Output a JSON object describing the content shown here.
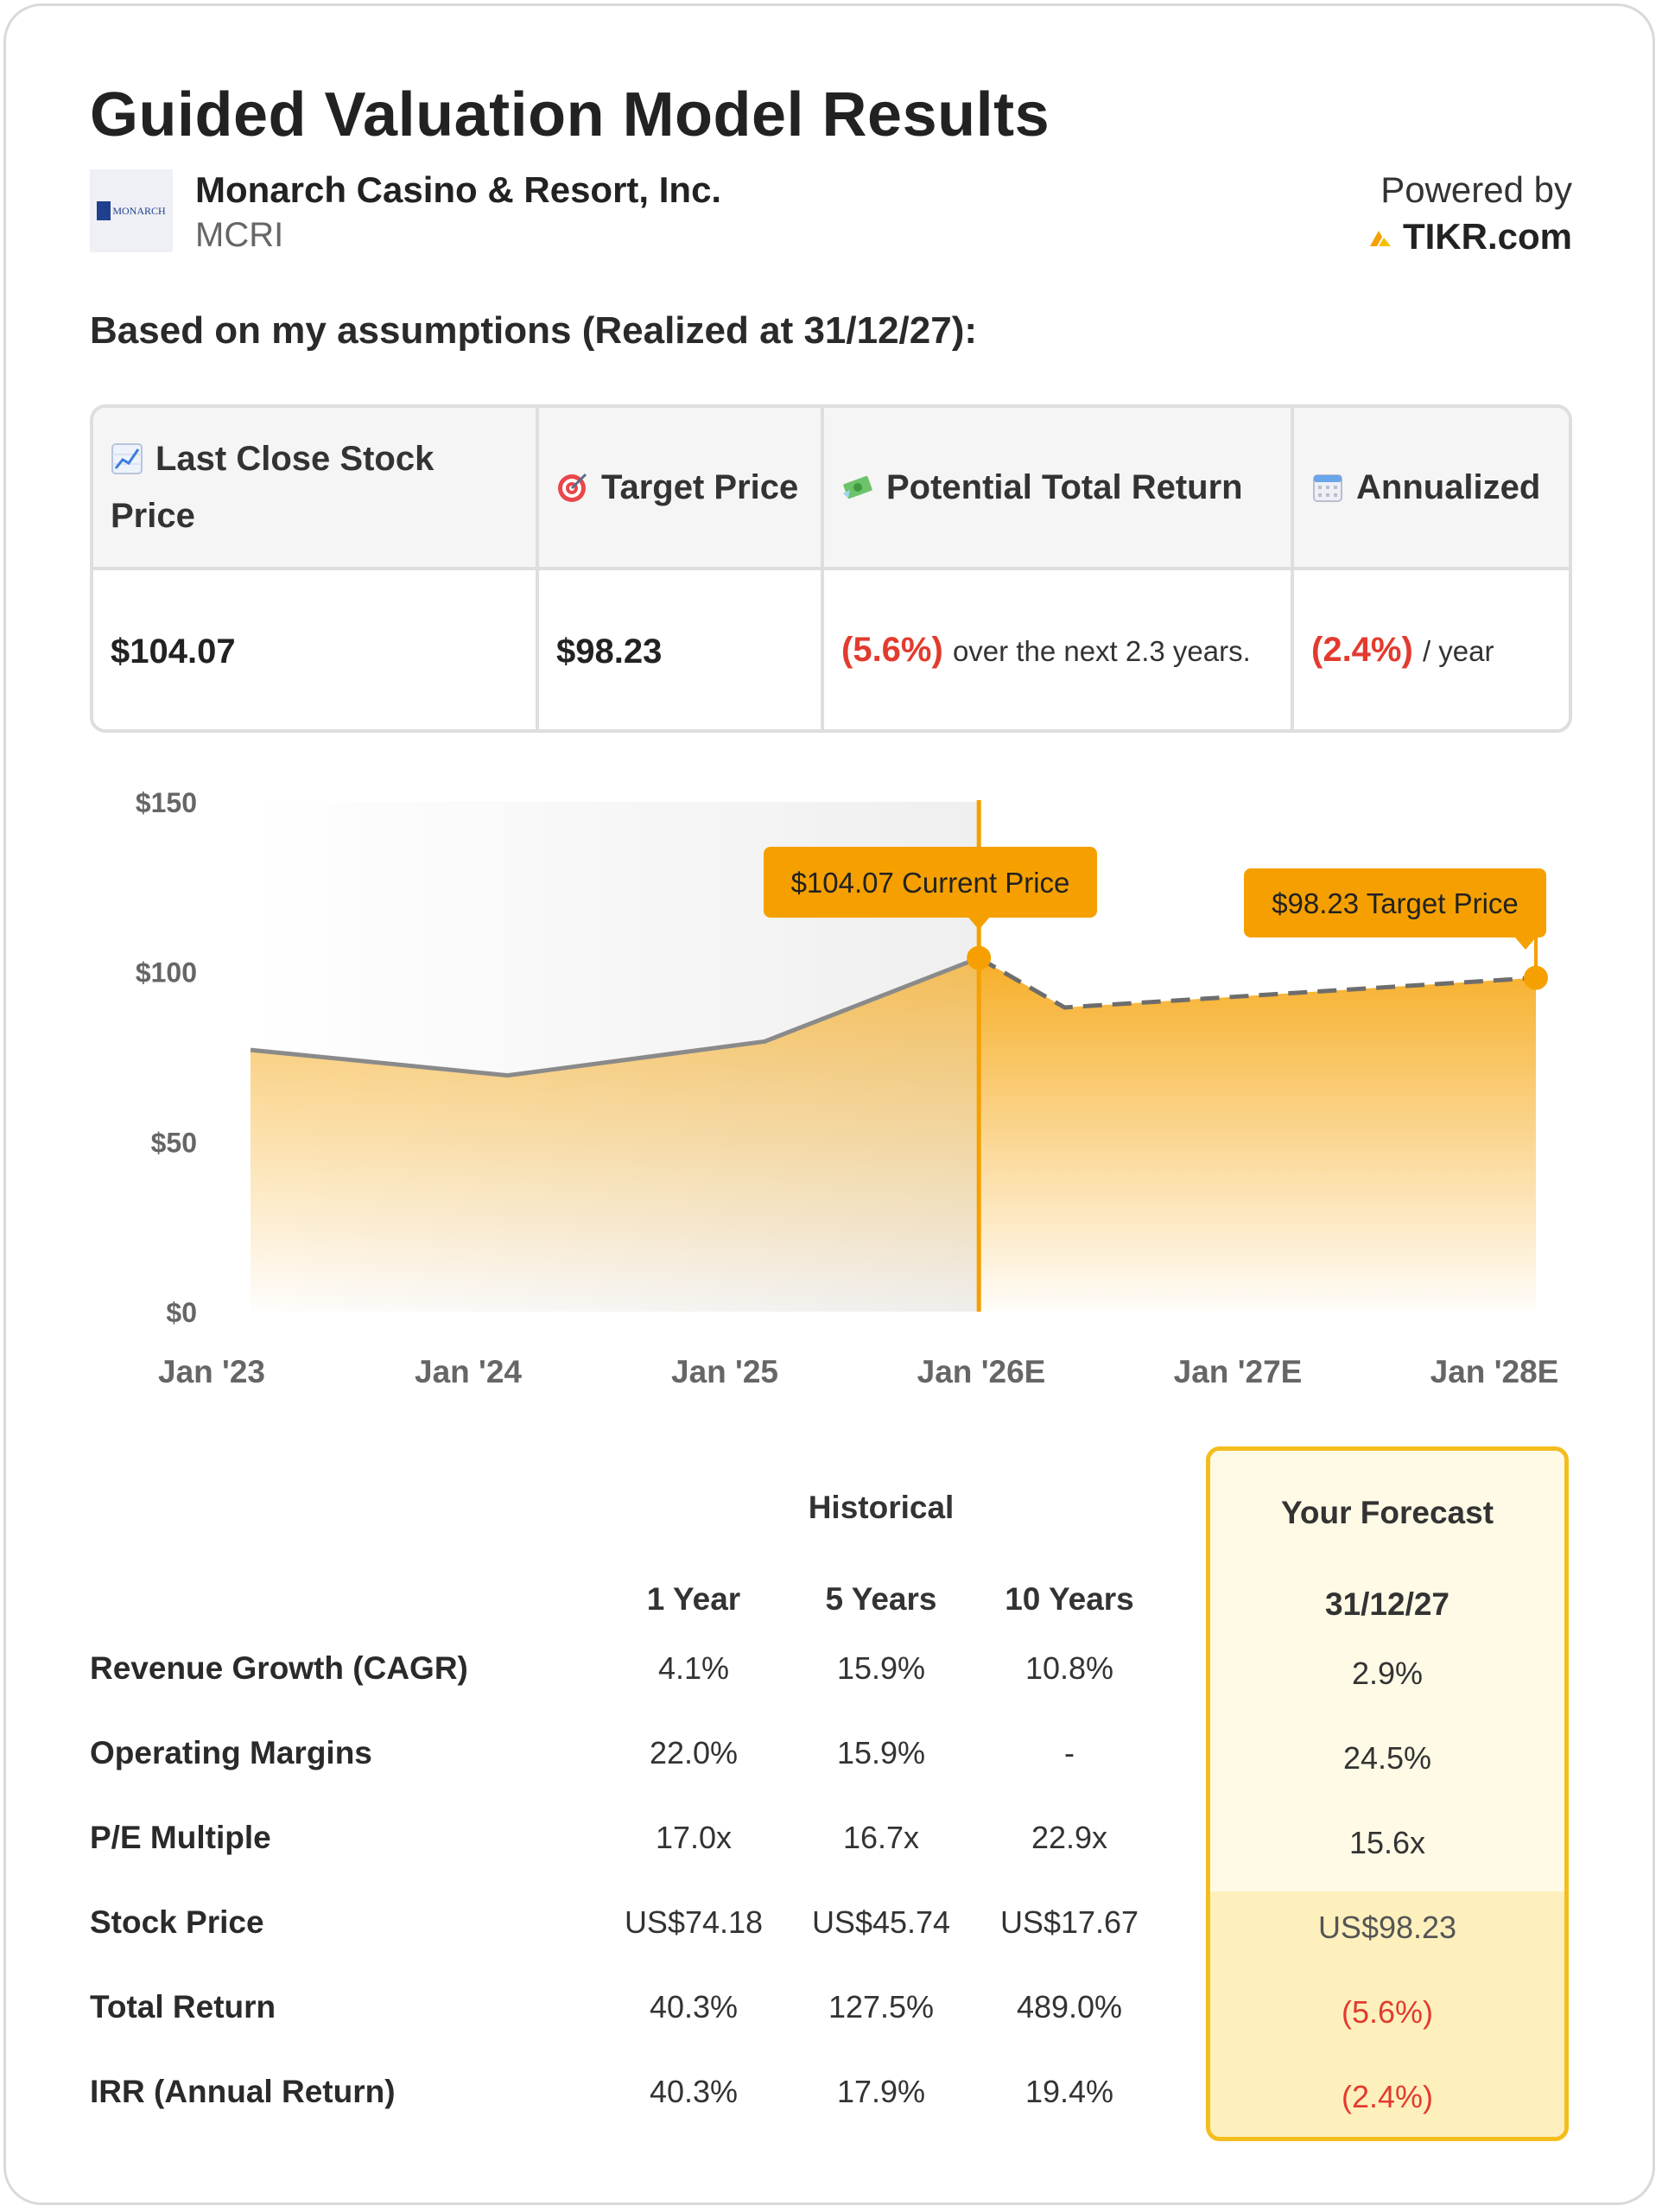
{
  "header": {
    "title": "Guided Valuation Model Results",
    "company": "Monarch Casino & Resort, Inc.",
    "ticker": "MCRI",
    "logo_text": "MONARCH",
    "powered_by": "Powered by",
    "brand": "TIKR.com"
  },
  "subtitle": "Based on my assumptions (Realized at 31/12/27):",
  "summary": {
    "headers": {
      "last_close": "Last Close Stock Price",
      "target": "Target Price",
      "potential": "Potential Total Return",
      "annualized": "Annualized"
    },
    "values": {
      "last_close": "$104.07",
      "target": "$98.23",
      "potential_value": "(5.6%)",
      "potential_suffix": "over the next 2.3 years.",
      "annualized_value": "(2.4%)",
      "annualized_suffix": "/ year"
    }
  },
  "chart_data": {
    "type": "area",
    "x_labels": [
      "Jan '23",
      "Jan '24",
      "Jan '25",
      "Jan '26E",
      "Jan '27E",
      "Jan '28E"
    ],
    "y_ticks": [
      "$150",
      "$100",
      "$50",
      "$0"
    ],
    "ylim": [
      0,
      150
    ],
    "historical": [
      {
        "x": "2023-01",
        "y": 77
      },
      {
        "x": "2024-01",
        "y": 69.5
      },
      {
        "x": "2025-01",
        "y": 79.5
      },
      {
        "x": "2025-11",
        "y": 104.07
      }
    ],
    "forecast": [
      {
        "x": "2025-11",
        "y": 104.07
      },
      {
        "x": "2026-03",
        "y": 89.5
      },
      {
        "x": "2028-01",
        "y": 98.23
      }
    ],
    "annotations": {
      "current": "$104.07 Current Price",
      "target": "$98.23 Target Price"
    },
    "colors": {
      "accent": "#f5a000",
      "line": "#8a8a8a",
      "historical_bg": "#f2f2f2"
    }
  },
  "metrics": {
    "group_header": "Historical",
    "columns": [
      "1 Year",
      "5 Years",
      "10 Years"
    ],
    "forecast_header": "Your Forecast",
    "forecast_date": "31/12/27",
    "rows": [
      {
        "label": "Revenue Growth (CAGR)",
        "values": [
          "4.1%",
          "15.9%",
          "10.8%"
        ],
        "forecast": "2.9%"
      },
      {
        "label": "Operating Margins",
        "values": [
          "22.0%",
          "15.9%",
          "-"
        ],
        "forecast": "24.5%"
      },
      {
        "label": "P/E Multiple",
        "values": [
          "17.0x",
          "16.7x",
          "22.9x"
        ],
        "forecast": "15.6x"
      },
      {
        "label": "Stock Price",
        "values": [
          "US$74.18",
          "US$45.74",
          "US$17.67"
        ],
        "forecast": "US$98.23"
      },
      {
        "label": "Total Return",
        "values": [
          "40.3%",
          "127.5%",
          "489.0%"
        ],
        "forecast": "(5.6%)"
      },
      {
        "label": "IRR (Annual Return)",
        "values": [
          "40.3%",
          "17.9%",
          "19.4%"
        ],
        "forecast": "(2.4%)"
      }
    ]
  }
}
